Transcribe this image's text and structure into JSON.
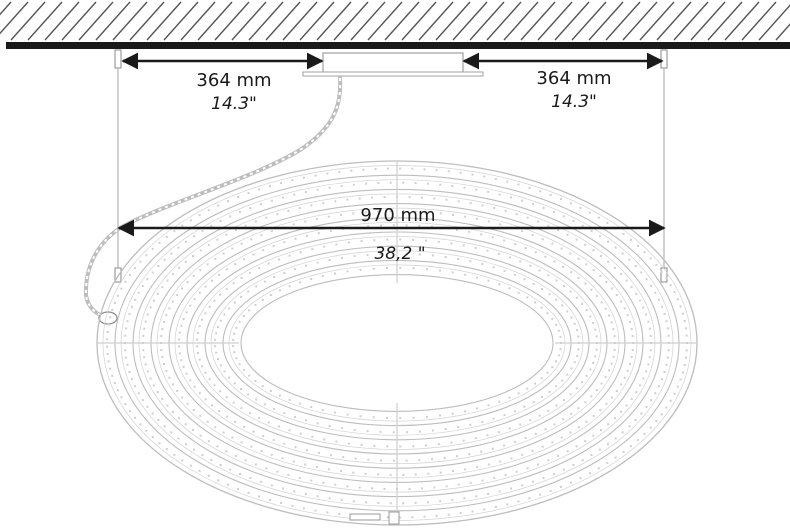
{
  "dimensions": {
    "left_offset": {
      "mm": "364 mm",
      "inch": "14.3\""
    },
    "right_offset": {
      "mm": "364 mm",
      "inch": "14.3\""
    },
    "diameter": {
      "mm": "970 mm",
      "inch": "38,2 \""
    }
  },
  "colors": {
    "line": "#1a1a1a",
    "fixture": "#bdbdbd",
    "hatch": "#555555"
  },
  "icons": [
    "ceiling-hatch",
    "canopy",
    "suspension-cable",
    "power-cord"
  ]
}
